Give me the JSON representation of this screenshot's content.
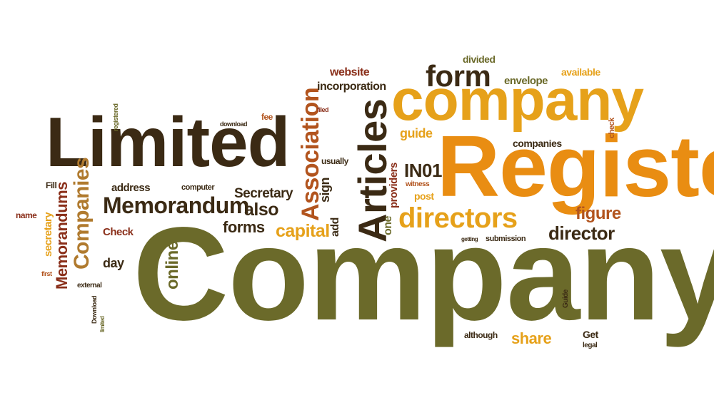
{
  "palette": {
    "olive": "#6b6a2a",
    "dark_brown": "#3b2a14",
    "orange": "#e98d12",
    "gold": "#e6a11a",
    "rust": "#b2541e",
    "red_brown": "#8a2f1a",
    "tan": "#b07a2e"
  },
  "words": {
    "company_big": "Company",
    "register": "Register",
    "company_mid": "company",
    "limited": "Limited",
    "articles": "Articles",
    "memorandum": "Memorandum",
    "directors": "directors",
    "form": "form",
    "association": "Association",
    "director": "director",
    "companies_v": "Companies",
    "memorandums": "Memorandums",
    "capital": "capital",
    "online": "online",
    "secretary_cap": "Secretary",
    "also": "also",
    "forms": "forms",
    "in01": "IN01",
    "figure": "figure",
    "share": "share",
    "website": "website",
    "incorporation": "incorporation",
    "divided": "divided",
    "envelope": "envelope",
    "available": "available",
    "guide": "guide",
    "companies": "companies",
    "address": "address",
    "computer": "computer",
    "sign": "sign",
    "providers": "providers",
    "post": "post",
    "witness": "witness",
    "usually": "usually",
    "add": "add",
    "one": "one",
    "check_cap": "Check",
    "day": "day",
    "name": "name",
    "secretary": "secretary",
    "fill": "Fill",
    "fee": "fee",
    "download": "download",
    "registered": "registered",
    "submission": "submission",
    "although": "although",
    "get": "Get",
    "legal": "legal",
    "guide_cap": "Guide",
    "external": "external",
    "download_cap": "Download",
    "limited_small": "limited",
    "first": "first",
    "check": "check",
    "filed": "filed",
    "getting": "getting"
  }
}
